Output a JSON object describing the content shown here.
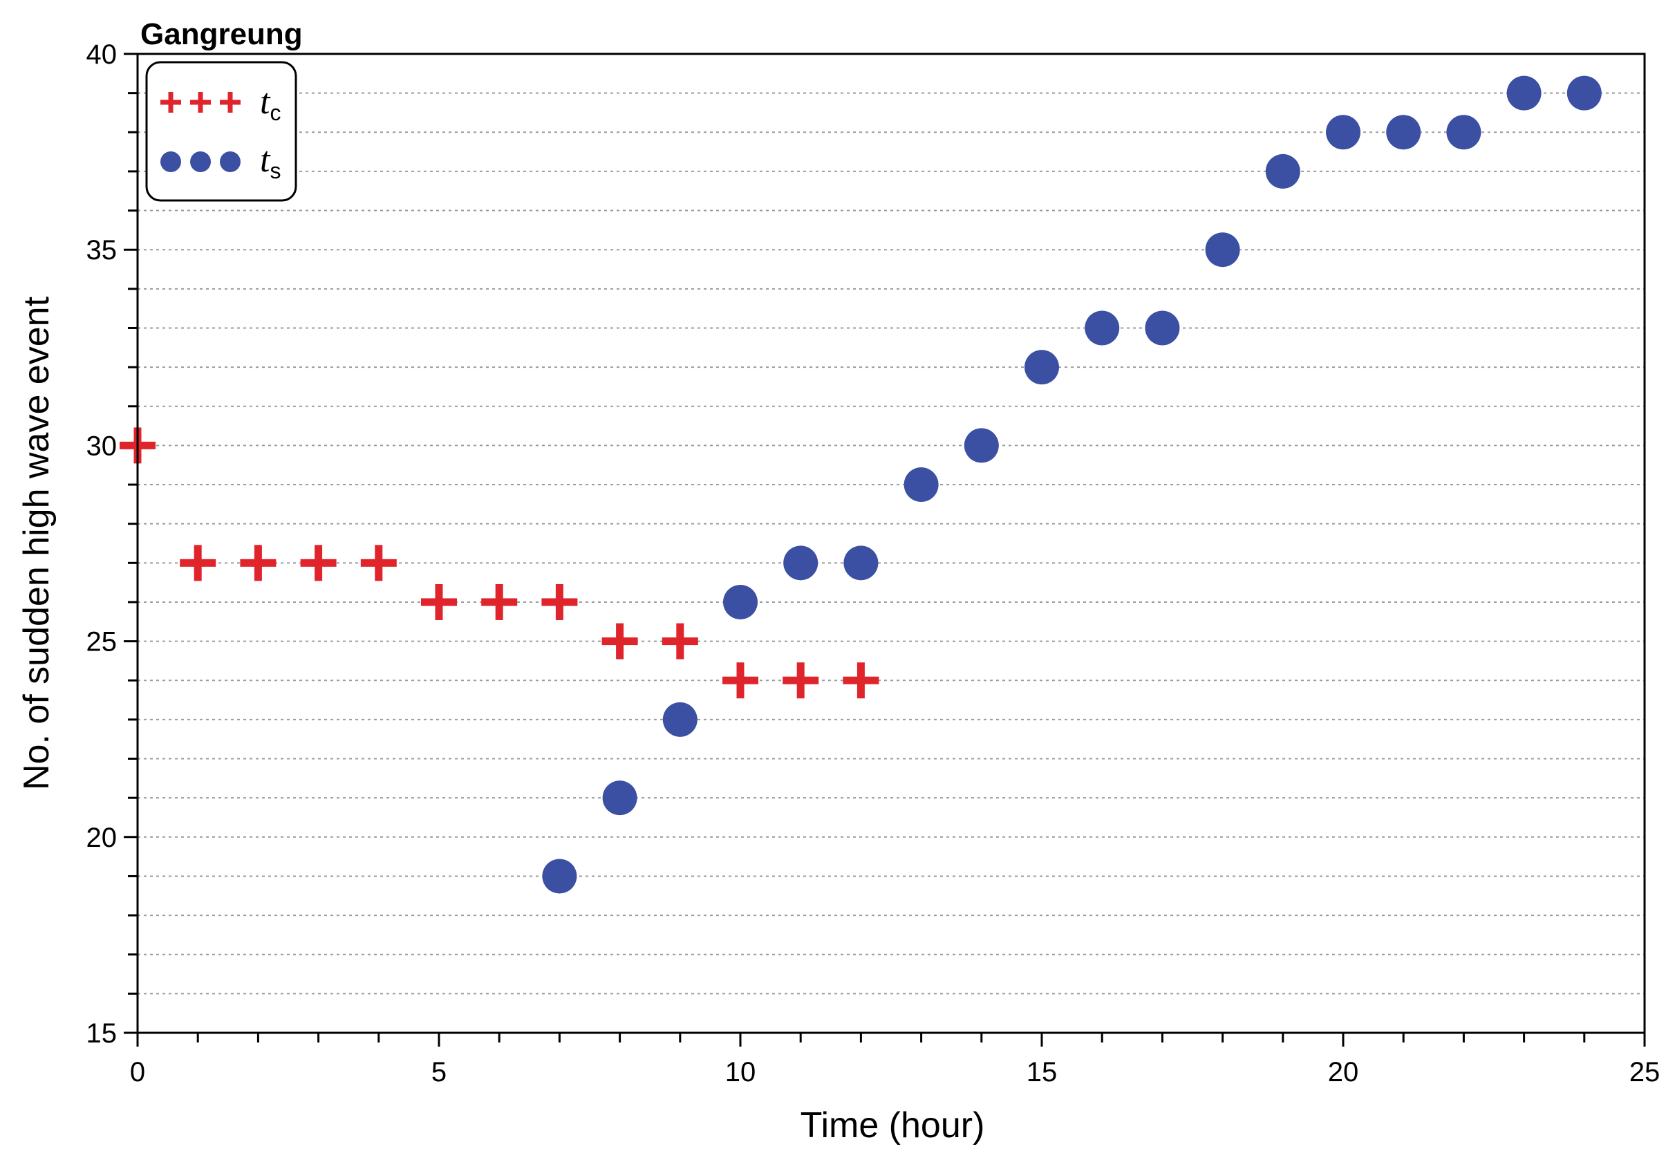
{
  "chart_data": {
    "type": "scatter",
    "title": "Gangreung",
    "xlabel": "Time (hour)",
    "ylabel": "No. of sudden high wave event",
    "xlim": [
      0,
      25
    ],
    "ylim": [
      15,
      40
    ],
    "xticks": [
      0,
      5,
      10,
      15,
      20,
      25
    ],
    "yticks": [
      15,
      20,
      25,
      30,
      35,
      40
    ],
    "grid": "horizontal dotted at every 1 unit",
    "legend_position": "top-left",
    "series": [
      {
        "name": "t",
        "subscript": "c",
        "marker": "plus",
        "color": "#e0242b",
        "x": [
          0,
          1,
          2,
          3,
          4,
          5,
          6,
          7,
          8,
          9,
          10,
          11,
          12
        ],
        "y": [
          30,
          27,
          27,
          27,
          27,
          26,
          26,
          26,
          25,
          25,
          24,
          24,
          24
        ]
      },
      {
        "name": "t",
        "subscript": "s",
        "marker": "circle",
        "color": "#3b4fa3",
        "x": [
          7,
          8,
          9,
          10,
          11,
          12,
          13,
          14,
          15,
          16,
          17,
          18,
          19,
          20,
          21,
          22,
          23,
          24
        ],
        "y": [
          19,
          21,
          23,
          26,
          27,
          27,
          29,
          30,
          32,
          33,
          33,
          35,
          37,
          38,
          38,
          38,
          39,
          39
        ]
      }
    ]
  }
}
